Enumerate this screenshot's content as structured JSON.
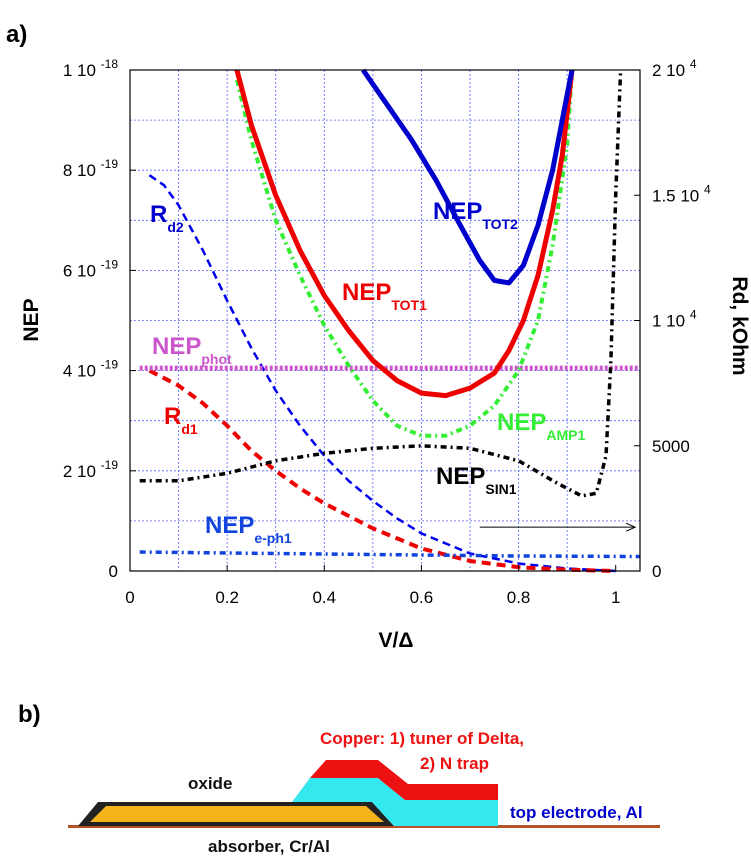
{
  "panel_a": "a)",
  "panel_b": "b)",
  "chart_data": {
    "type": "line",
    "xlabel": "V/Δ",
    "ylabel": "NEP",
    "y2label": "Rd, kOhm",
    "xlim": [
      0,
      1.05
    ],
    "ylim": [
      0,
      1e-18
    ],
    "y2lim": [
      0,
      20000
    ],
    "grid": true,
    "x_ticks": [
      {
        "value": 0,
        "label": "0"
      },
      {
        "value": 0.2,
        "label": "0.2"
      },
      {
        "value": 0.4,
        "label": "0.4"
      },
      {
        "value": 0.6,
        "label": "0.6"
      },
      {
        "value": 0.8,
        "label": "0.8"
      },
      {
        "value": 1.0,
        "label": "1"
      }
    ],
    "y_ticks": [
      {
        "value": 0,
        "mant": "0",
        "exp": ""
      },
      {
        "value": 2e-19,
        "mant": "2 10",
        "exp": "-19"
      },
      {
        "value": 4e-19,
        "mant": "4 10",
        "exp": "-19"
      },
      {
        "value": 6e-19,
        "mant": "6 10",
        "exp": "-19"
      },
      {
        "value": 8e-19,
        "mant": "8 10",
        "exp": "-19"
      },
      {
        "value": 1e-18,
        "mant": "1 10",
        "exp": "-18"
      }
    ],
    "y2_ticks": [
      {
        "value": 0,
        "mant": "0",
        "exp": ""
      },
      {
        "value": 5000,
        "mant": "5000",
        "exp": ""
      },
      {
        "value": 10000,
        "mant": "1 10",
        "exp": "4"
      },
      {
        "value": 15000,
        "mant": "1.5 10",
        "exp": "4"
      },
      {
        "value": 20000,
        "mant": "2 10",
        "exp": "4"
      }
    ],
    "series": [
      {
        "name": "NEP_TOT2",
        "label_main": "NEP",
        "label_sub": "TOT2",
        "color": "#0000cc",
        "dash": "solid",
        "width": 5,
        "axis": "left",
        "x": [
          0.48,
          0.53,
          0.58,
          0.63,
          0.68,
          0.72,
          0.75,
          0.78,
          0.81,
          0.84,
          0.87,
          0.9,
          0.91
        ],
        "y": [
          1e-18,
          9.3e-19,
          8.6e-19,
          7.8e-19,
          6.9e-19,
          6.2e-19,
          5.8e-19,
          5.75e-19,
          6.1e-19,
          6.9e-19,
          8e-19,
          9.5e-19,
          1e-18
        ]
      },
      {
        "name": "NEP_TOT1",
        "label_main": "NEP",
        "label_sub": "TOT1",
        "color": "#ee0000",
        "dash": "solid",
        "width": 5,
        "axis": "left",
        "x": [
          0.22,
          0.25,
          0.3,
          0.35,
          0.4,
          0.45,
          0.5,
          0.55,
          0.6,
          0.65,
          0.7,
          0.75,
          0.78,
          0.81,
          0.84,
          0.87,
          0.89,
          0.91
        ],
        "y": [
          1e-18,
          8.9e-19,
          7.5e-19,
          6.4e-19,
          5.5e-19,
          4.8e-19,
          4.2e-19,
          3.8e-19,
          3.55e-19,
          3.5e-19,
          3.65e-19,
          3.95e-19,
          4.4e-19,
          5e-19,
          5.9e-19,
          7.2e-19,
          8.3e-19,
          1e-18
        ]
      },
      {
        "name": "NEP_AMP1",
        "label_main": "NEP",
        "label_sub": "AMP1",
        "color": "#33ee33",
        "dash": "6,4,2,4",
        "width": 4,
        "axis": "left",
        "x": [
          0.22,
          0.25,
          0.3,
          0.35,
          0.4,
          0.45,
          0.5,
          0.55,
          0.6,
          0.65,
          0.7,
          0.75,
          0.8,
          0.84,
          0.87,
          0.9,
          0.91
        ],
        "y": [
          9.8e-19,
          8.6e-19,
          7e-19,
          5.9e-19,
          4.9e-19,
          4.1e-19,
          3.4e-19,
          2.9e-19,
          2.7e-19,
          2.7e-19,
          2.9e-19,
          3.3e-19,
          4e-19,
          5e-19,
          6.5e-19,
          8.5e-19,
          1e-18
        ]
      },
      {
        "name": "NEP_phot",
        "label_main": "NEP",
        "label_sub": "phot",
        "color": "#cc55cc",
        "dash": "3,2",
        "width": 5,
        "axis": "left",
        "x": [
          0.02,
          1.05
        ],
        "y": [
          4.05e-19,
          4.05e-19
        ]
      },
      {
        "name": "NEP_SIN1",
        "label_main": "NEP",
        "label_sub": "SIN1",
        "color": "#000000",
        "dash": "6,4,2,4",
        "width": 3.5,
        "axis": "left",
        "x": [
          0.02,
          0.1,
          0.2,
          0.3,
          0.4,
          0.5,
          0.6,
          0.7,
          0.8,
          0.88,
          0.93,
          0.96,
          0.98,
          0.99,
          1.0,
          1.01
        ],
        "y": [
          1.8e-19,
          1.8e-19,
          1.95e-19,
          2.2e-19,
          2.35e-19,
          2.45e-19,
          2.5e-19,
          2.45e-19,
          2.2e-19,
          1.75e-19,
          1.5e-19,
          1.55e-19,
          2.3e-19,
          4.2e-19,
          7.5e-19,
          1e-18
        ]
      },
      {
        "name": "NEP_e-ph1",
        "label_main": "NEP",
        "label_sub": "e-ph1",
        "color": "#1144dd",
        "dash": "6,4,2,4",
        "width": 3.5,
        "axis": "left",
        "x": [
          0.02,
          0.2,
          0.4,
          0.6,
          0.8,
          1.05
        ],
        "y": [
          3.8e-20,
          3.6e-20,
          3.4e-20,
          3.2e-20,
          3e-20,
          2.9e-20
        ]
      },
      {
        "name": "R_d2",
        "label_main": "R",
        "label_sub": "d2",
        "color": "#0000ee",
        "dash": "8,5",
        "width": 2.5,
        "axis": "right",
        "x": [
          0.04,
          0.07,
          0.1,
          0.15,
          0.2,
          0.25,
          0.3,
          0.35,
          0.4,
          0.45,
          0.5,
          0.55,
          0.6,
          0.7,
          0.8,
          0.9,
          1.0
        ],
        "y": [
          15800,
          15400,
          14600,
          12800,
          10800,
          8900,
          7200,
          5800,
          4600,
          3600,
          2800,
          2100,
          1500,
          700,
          300,
          100,
          0
        ]
      },
      {
        "name": "R_d1",
        "label_main": "R",
        "label_sub": "d1",
        "color": "#ee0000",
        "dash": "9,6",
        "width": 4,
        "axis": "right",
        "x": [
          0.04,
          0.1,
          0.15,
          0.2,
          0.25,
          0.3,
          0.35,
          0.4,
          0.45,
          0.5,
          0.55,
          0.6,
          0.7,
          0.8,
          0.9,
          1.0
        ],
        "y": [
          8000,
          7400,
          6700,
          5800,
          4800,
          4000,
          3300,
          2700,
          2200,
          1700,
          1300,
          900,
          400,
          150,
          50,
          0
        ]
      }
    ],
    "annotation_arrow": {
      "x_from": 0.72,
      "x_to": 1.04,
      "y2": 1750
    }
  },
  "diagram": {
    "copper_label_1": "Copper: 1) tuner of Delta,",
    "copper_label_2": "2) N trap",
    "oxide_label": "oxide",
    "top_electrode_label": "top electrode, Al",
    "absorber_label": "absorber, Cr/Al",
    "colors": {
      "copper": "#ee1111",
      "electrode": "#33e8ee",
      "absorber": "#f2b41a",
      "oxide": "#222222",
      "substrate": "#b5522a",
      "copper_text": "#ee1111",
      "electrode_text": "#0000cc"
    }
  }
}
